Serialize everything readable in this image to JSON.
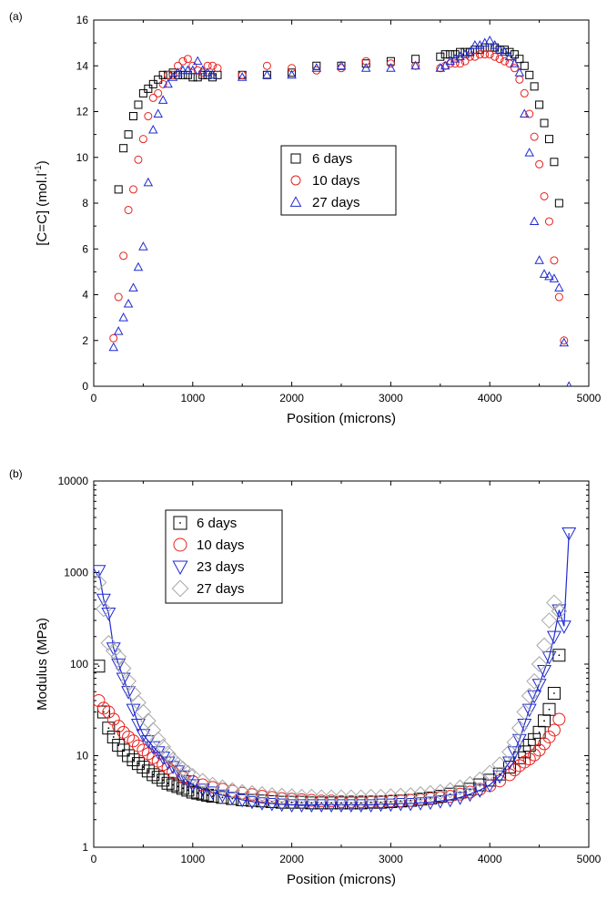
{
  "chart_data": [
    {
      "type": "scatter",
      "panel_label": "(a)",
      "title": "",
      "xlabel": "Position (microns)",
      "ylabel": "[C=C] (mol.l",
      "ylabel_sup": "-1",
      "ylabel_tail": ")",
      "xlim": [
        0,
        5000
      ],
      "ylim": [
        0,
        16
      ],
      "xticks": [
        0,
        1000,
        2000,
        3000,
        4000,
        5000
      ],
      "yticks": [
        0,
        2,
        4,
        6,
        8,
        10,
        12,
        14,
        16
      ],
      "grid": false,
      "legend_position": "center",
      "series": [
        {
          "name": "6 days",
          "marker": "square",
          "color": "#000000",
          "x": [
            250,
            300,
            350,
            400,
            450,
            500,
            550,
            600,
            650,
            700,
            750,
            800,
            850,
            900,
            950,
            1000,
            1050,
            1100,
            1150,
            1200,
            1250,
            1500,
            1750,
            2000,
            2250,
            2500,
            2750,
            3000,
            3250,
            3500,
            3550,
            3600,
            3650,
            3700,
            3750,
            3800,
            3850,
            3900,
            3950,
            4000,
            4050,
            4100,
            4150,
            4200,
            4250,
            4300,
            4350,
            4400,
            4450,
            4500,
            4550,
            4600,
            4650,
            4700
          ],
          "y": [
            8.6,
            10.4,
            11.0,
            11.8,
            12.3,
            12.8,
            13.0,
            13.2,
            13.4,
            13.6,
            13.6,
            13.7,
            13.6,
            13.6,
            13.6,
            13.5,
            13.5,
            13.6,
            13.6,
            13.5,
            13.6,
            13.6,
            13.6,
            13.7,
            14.0,
            14.0,
            14.1,
            14.2,
            14.3,
            14.4,
            14.5,
            14.5,
            14.5,
            14.6,
            14.6,
            14.6,
            14.7,
            14.7,
            14.8,
            14.8,
            14.8,
            14.7,
            14.7,
            14.6,
            14.5,
            14.3,
            14.0,
            13.6,
            13.1,
            12.3,
            11.5,
            10.8,
            9.8,
            8.0
          ]
        },
        {
          "name": "10 days",
          "marker": "circle",
          "color": "#e8201c",
          "x": [
            200,
            250,
            300,
            350,
            400,
            450,
            500,
            550,
            600,
            650,
            700,
            750,
            800,
            850,
            900,
            950,
            1000,
            1050,
            1100,
            1150,
            1200,
            1250,
            1500,
            1750,
            2000,
            2250,
            2500,
            2750,
            3000,
            3250,
            3500,
            3550,
            3600,
            3650,
            3700,
            3750,
            3800,
            3850,
            3900,
            3950,
            4000,
            4050,
            4100,
            4150,
            4200,
            4250,
            4300,
            4350,
            4400,
            4450,
            4500,
            4550,
            4600,
            4650,
            4700,
            4750
          ],
          "y": [
            2.1,
            3.9,
            5.7,
            7.7,
            8.6,
            9.9,
            10.8,
            11.8,
            12.6,
            12.8,
            13.2,
            13.6,
            13.6,
            14.0,
            14.2,
            14.3,
            14.0,
            13.8,
            13.7,
            14.0,
            14.0,
            13.9,
            13.6,
            14.0,
            13.9,
            13.8,
            13.9,
            14.2,
            14.1,
            14.0,
            13.9,
            14.0,
            14.1,
            14.1,
            14.1,
            14.2,
            14.4,
            14.4,
            14.5,
            14.5,
            14.5,
            14.4,
            14.3,
            14.2,
            14.1,
            13.9,
            13.4,
            12.8,
            11.9,
            10.9,
            9.7,
            8.3,
            7.2,
            5.5,
            3.9,
            2.0
          ]
        },
        {
          "name": "27 days",
          "marker": "triangle",
          "color": "#1f2ad1",
          "x": [
            200,
            250,
            300,
            350,
            400,
            450,
            500,
            550,
            600,
            650,
            700,
            750,
            800,
            850,
            900,
            950,
            1000,
            1050,
            1100,
            1150,
            1200,
            1500,
            1750,
            2000,
            2250,
            2500,
            2750,
            3000,
            3250,
            3500,
            3550,
            3600,
            3650,
            3700,
            3750,
            3800,
            3850,
            3900,
            3950,
            4000,
            4050,
            4100,
            4150,
            4200,
            4250,
            4300,
            4350,
            4400,
            4450,
            4500,
            4550,
            4600,
            4650,
            4700,
            4750,
            4800
          ],
          "y": [
            1.7,
            2.4,
            3.0,
            3.6,
            4.3,
            5.2,
            6.1,
            8.9,
            11.2,
            11.9,
            12.5,
            13.2,
            13.5,
            13.7,
            13.8,
            13.8,
            13.8,
            14.2,
            13.8,
            13.7,
            13.6,
            13.5,
            13.6,
            13.6,
            13.9,
            14.0,
            13.9,
            13.9,
            14.0,
            13.9,
            14.0,
            14.2,
            14.3,
            14.4,
            14.5,
            14.6,
            14.9,
            14.9,
            15.0,
            15.1,
            14.9,
            14.7,
            14.6,
            14.4,
            14.1,
            13.7,
            11.9,
            10.2,
            7.2,
            5.5,
            4.9,
            4.8,
            4.7,
            4.3,
            1.9,
            0
          ]
        }
      ]
    },
    {
      "type": "scatter",
      "panel_label": "(b)",
      "title": "",
      "xlabel": "Position (microns)",
      "ylabel": "Modulus (MPa)",
      "xlim": [
        0,
        5000
      ],
      "ylim": [
        1,
        10000
      ],
      "yscale": "log",
      "xticks": [
        0,
        1000,
        2000,
        3000,
        4000,
        5000
      ],
      "yticks": [
        1,
        10,
        100,
        1000,
        10000
      ],
      "grid": false,
      "legend_position": "top-left",
      "series": [
        {
          "name": "6 days",
          "marker": "square-dot",
          "color": "#000000",
          "x": [
            50,
            100,
            150,
            200,
            250,
            300,
            350,
            400,
            450,
            500,
            550,
            600,
            650,
            700,
            750,
            800,
            850,
            900,
            950,
            1000,
            1050,
            1100,
            1150,
            1200,
            1300,
            1400,
            1500,
            1600,
            1700,
            1800,
            1900,
            2000,
            2100,
            2200,
            2300,
            2400,
            2500,
            2600,
            2700,
            2800,
            2900,
            3000,
            3100,
            3200,
            3300,
            3400,
            3500,
            3600,
            3700,
            3800,
            3900,
            4000,
            4100,
            4200,
            4300,
            4350,
            4400,
            4450,
            4500,
            4550,
            4600,
            4650,
            4700
          ],
          "y": [
            95,
            30,
            20,
            16,
            13,
            11.5,
            10,
            9,
            8.2,
            7.5,
            6.8,
            6.2,
            5.8,
            5.4,
            5.0,
            4.8,
            4.6,
            4.4,
            4.2,
            4.0,
            3.9,
            3.8,
            3.7,
            3.6,
            3.5,
            3.4,
            3.3,
            3.25,
            3.2,
            3.15,
            3.1,
            3.1,
            3.1,
            3.05,
            3.05,
            3.05,
            3.05,
            3.05,
            3.05,
            3.1,
            3.1,
            3.15,
            3.2,
            3.25,
            3.35,
            3.45,
            3.6,
            3.8,
            4.0,
            4.3,
            4.8,
            5.4,
            6.3,
            7.5,
            9.5,
            11,
            13,
            15,
            18,
            24,
            32,
            48,
            125
          ]
        },
        {
          "name": "10 days",
          "marker": "circle",
          "color": "#e8201c",
          "x": [
            50,
            100,
            150,
            200,
            250,
            300,
            350,
            400,
            450,
            500,
            550,
            600,
            650,
            700,
            750,
            800,
            900,
            1000,
            1100,
            1200,
            1300,
            1400,
            1500,
            1600,
            1700,
            1800,
            1900,
            2000,
            2100,
            2200,
            2300,
            2400,
            2500,
            2600,
            2700,
            2800,
            2900,
            3000,
            3100,
            3200,
            3300,
            3400,
            3500,
            3600,
            3700,
            3800,
            3900,
            4000,
            4100,
            4200,
            4250,
            4300,
            4350,
            4400,
            4450,
            4500,
            4550,
            4600,
            4650,
            4700
          ],
          "y": [
            40,
            33,
            30,
            25,
            21,
            18,
            16,
            14.5,
            12.8,
            11.5,
            10.5,
            9.5,
            8.7,
            8.0,
            7.3,
            6.6,
            5.8,
            5.2,
            4.8,
            4.5,
            4.3,
            4.1,
            3.9,
            3.75,
            3.6,
            3.5,
            3.4,
            3.35,
            3.3,
            3.25,
            3.2,
            3.2,
            3.15,
            3.15,
            3.15,
            3.15,
            3.15,
            3.2,
            3.2,
            3.25,
            3.3,
            3.4,
            3.5,
            3.6,
            3.8,
            4.0,
            4.3,
            4.7,
            5.3,
            6.2,
            7.0,
            7.8,
            8.5,
            9.2,
            10.2,
            11.5,
            13.5,
            16,
            19,
            25
          ]
        },
        {
          "name": "23 days",
          "marker": "triangle-down",
          "color": "#1f2ad1",
          "x": [
            50,
            100,
            150,
            200,
            250,
            300,
            350,
            400,
            450,
            500,
            550,
            600,
            650,
            700,
            750,
            800,
            850,
            900,
            950,
            1000,
            1100,
            1200,
            1300,
            1400,
            1500,
            1600,
            1700,
            1800,
            1900,
            2000,
            2100,
            2200,
            2300,
            2400,
            2500,
            2600,
            2700,
            2800,
            2900,
            3000,
            3100,
            3200,
            3300,
            3400,
            3500,
            3600,
            3700,
            3800,
            3900,
            4000,
            4100,
            4200,
            4250,
            4300,
            4350,
            4400,
            4450,
            4500,
            4550,
            4600,
            4650,
            4700,
            4750,
            4800
          ],
          "y": [
            1050,
            510,
            360,
            150,
            100,
            70,
            50,
            32,
            22,
            17,
            14.5,
            12.5,
            11,
            9.6,
            8.5,
            7.6,
            6.8,
            6.0,
            5.3,
            4.8,
            4.3,
            4.0,
            3.7,
            3.5,
            3.3,
            3.15,
            3.05,
            3.0,
            2.95,
            2.9,
            2.9,
            2.9,
            2.9,
            2.9,
            2.9,
            2.9,
            2.9,
            2.9,
            2.95,
            2.95,
            3.0,
            3.0,
            3.05,
            3.1,
            3.2,
            3.3,
            3.5,
            3.8,
            4.2,
            4.8,
            6.0,
            8.5,
            11,
            15,
            22,
            32,
            45,
            60,
            85,
            120,
            200,
            390,
            260,
            2700
          ]
        },
        {
          "name": "27 days",
          "marker": "diamond",
          "color": "#a8a8a8",
          "x": [
            50,
            100,
            150,
            200,
            250,
            300,
            350,
            400,
            450,
            500,
            550,
            600,
            650,
            700,
            750,
            800,
            850,
            900,
            950,
            1000,
            1100,
            1200,
            1300,
            1400,
            1500,
            1600,
            1700,
            1800,
            1900,
            2000,
            2100,
            2200,
            2300,
            2400,
            2500,
            2600,
            2700,
            2800,
            2900,
            3000,
            3100,
            3200,
            3300,
            3400,
            3500,
            3600,
            3700,
            3800,
            3900,
            4000,
            4100,
            4200,
            4250,
            4300,
            4350,
            4400,
            4450,
            4500,
            4550,
            4600,
            4650,
            4700
          ],
          "y": [
            780,
            400,
            170,
            140,
            120,
            90,
            65,
            48,
            38,
            30,
            24,
            19,
            15,
            12.5,
            10.5,
            9.0,
            8.0,
            7.2,
            6.5,
            6.0,
            5.3,
            4.8,
            4.5,
            4.2,
            4.0,
            3.9,
            3.8,
            3.7,
            3.65,
            3.6,
            3.55,
            3.55,
            3.5,
            3.5,
            3.5,
            3.5,
            3.5,
            3.55,
            3.55,
            3.6,
            3.65,
            3.7,
            3.8,
            3.9,
            4.0,
            4.2,
            4.5,
            4.9,
            5.5,
            6.5,
            8.0,
            11,
            14,
            20,
            30,
            45,
            65,
            100,
            160,
            300,
            470,
            380
          ]
        }
      ]
    }
  ]
}
